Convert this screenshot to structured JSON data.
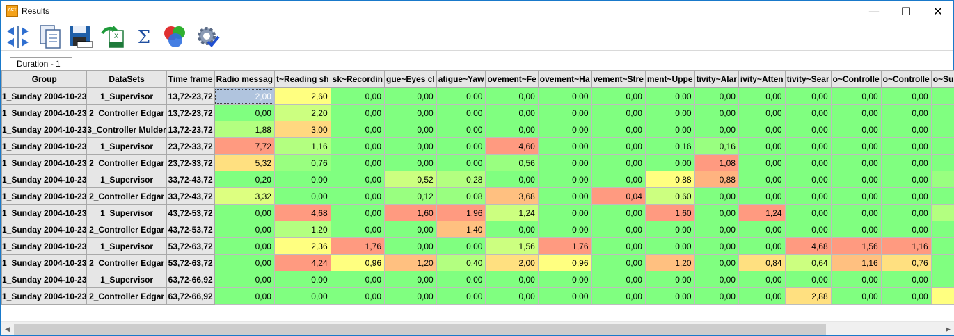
{
  "window": {
    "title": "Results",
    "icon_label": "ACT",
    "controls": {
      "minimize": "—",
      "maximize": "☐",
      "close": "✕"
    }
  },
  "toolbar": {
    "items": [
      {
        "name": "split-arrows-icon"
      },
      {
        "name": "copy-icon"
      },
      {
        "name": "save-icon"
      },
      {
        "name": "export-excel-icon"
      },
      {
        "name": "sum-icon",
        "glyph": "Σ"
      },
      {
        "name": "chart-bubbles-icon"
      },
      {
        "name": "settings-check-icon"
      }
    ]
  },
  "tab": {
    "label": "Duration  - 1"
  },
  "grid": {
    "headers": [
      "Group",
      "DataSets",
      "Time frame",
      "Radio messag",
      "t~Reading sh",
      "sk~Recordin",
      "gue~Eyes cl",
      "atigue~Yaw",
      "ovement~Fe",
      "ovement~Ha",
      "vement~Stre",
      "ment~Uppe",
      "tivity~Alar",
      "ivity~Atten",
      "tivity~Sear",
      "o~Controlle",
      "o~Controlle",
      "o~Sup"
    ],
    "rows": [
      [
        "1_Sunday 2004-10-23",
        "1_Supervisor",
        "13,72-23,72",
        "2,00",
        "2,60",
        "0,00",
        "0,00",
        "0,00",
        "0,00",
        "0,00",
        "0,00",
        "0,00",
        "0,00",
        "0,00",
        "0,00",
        "0,00",
        "0,00",
        ""
      ],
      [
        "1_Sunday 2004-10-23",
        "2_Controller Edgar",
        "13,72-23,72",
        "0,00",
        "2,20",
        "0,00",
        "0,00",
        "0,00",
        "0,00",
        "0,00",
        "0,00",
        "0,00",
        "0,00",
        "0,00",
        "0,00",
        "0,00",
        "0,00",
        ""
      ],
      [
        "1_Sunday 2004-10-23",
        "3_Controller Mulder",
        "13,72-23,72",
        "1,88",
        "3,00",
        "0,00",
        "0,00",
        "0,00",
        "0,00",
        "0,00",
        "0,00",
        "0,00",
        "0,00",
        "0,00",
        "0,00",
        "0,00",
        "0,00",
        ""
      ],
      [
        "1_Sunday 2004-10-23",
        "1_Supervisor",
        "23,72-33,72",
        "7,72",
        "1,16",
        "0,00",
        "0,00",
        "0,00",
        "4,60",
        "0,00",
        "0,00",
        "0,16",
        "0,16",
        "0,00",
        "0,00",
        "0,00",
        "0,00",
        ""
      ],
      [
        "1_Sunday 2004-10-23",
        "2_Controller Edgar",
        "23,72-33,72",
        "5,32",
        "0,76",
        "0,00",
        "0,00",
        "0,00",
        "0,56",
        "0,00",
        "0,00",
        "0,00",
        "1,08",
        "0,00",
        "0,00",
        "0,00",
        "0,00",
        ""
      ],
      [
        "1_Sunday 2004-10-23",
        "1_Supervisor",
        "33,72-43,72",
        "0,20",
        "0,00",
        "0,00",
        "0,52",
        "0,28",
        "0,00",
        "0,00",
        "0,00",
        "0,88",
        "0,88",
        "0,00",
        "0,00",
        "0,00",
        "0,00",
        ""
      ],
      [
        "1_Sunday 2004-10-23",
        "2_Controller Edgar",
        "33,72-43,72",
        "3,32",
        "0,00",
        "0,00",
        "0,12",
        "0,08",
        "3,68",
        "0,00",
        "0,04",
        "0,60",
        "0,00",
        "0,00",
        "0,00",
        "0,00",
        "0,00",
        ""
      ],
      [
        "1_Sunday 2004-10-23",
        "1_Supervisor",
        "43,72-53,72",
        "0,00",
        "4,68",
        "0,00",
        "1,60",
        "1,96",
        "1,24",
        "0,00",
        "0,00",
        "1,60",
        "0,00",
        "1,24",
        "0,00",
        "0,00",
        "0,00",
        ""
      ],
      [
        "1_Sunday 2004-10-23",
        "2_Controller Edgar",
        "43,72-53,72",
        "0,00",
        "1,20",
        "0,00",
        "0,00",
        "1,40",
        "0,00",
        "0,00",
        "0,00",
        "0,00",
        "0,00",
        "0,00",
        "0,00",
        "0,00",
        "0,00",
        ""
      ],
      [
        "1_Sunday 2004-10-23",
        "1_Supervisor",
        "53,72-63,72",
        "0,00",
        "2,36",
        "1,76",
        "0,00",
        "0,00",
        "1,56",
        "1,76",
        "0,00",
        "0,00",
        "0,00",
        "0,00",
        "4,68",
        "1,56",
        "1,16",
        ""
      ],
      [
        "1_Sunday 2004-10-23",
        "2_Controller Edgar",
        "53,72-63,72",
        "0,00",
        "4,24",
        "0,96",
        "1,20",
        "0,40",
        "2,00",
        "0,96",
        "0,00",
        "1,20",
        "0,00",
        "0,84",
        "0,64",
        "1,16",
        "0,76",
        ""
      ],
      [
        "1_Sunday 2004-10-23",
        "1_Supervisor",
        "63,72-66,92",
        "0,00",
        "0,00",
        "0,00",
        "0,00",
        "0,00",
        "0,00",
        "0,00",
        "0,00",
        "0,00",
        "0,00",
        "0,00",
        "0,00",
        "0,00",
        "0,00",
        ""
      ],
      [
        "1_Sunday 2004-10-23",
        "2_Controller Edgar",
        "63,72-66,92",
        "0,00",
        "0,00",
        "0,00",
        "0,00",
        "0,00",
        "0,00",
        "0,00",
        "0,00",
        "0,00",
        "0,00",
        "0,00",
        "2,88",
        "0,00",
        "0,00",
        ""
      ]
    ],
    "cell_colors": [
      [
        "#b0c4de",
        "#ffff80",
        "#80ff80",
        "#80ff80",
        "#80ff80",
        "#80ff80",
        "#80ff80",
        "#80ff80",
        "#80ff80",
        "#80ff80",
        "#80ff80",
        "#80ff80",
        "#80ff80",
        "#80ff80",
        "#80ff80"
      ],
      [
        "#80ff80",
        "#ccff80",
        "#80ff80",
        "#80ff80",
        "#80ff80",
        "#80ff80",
        "#80ff80",
        "#80ff80",
        "#80ff80",
        "#80ff80",
        "#80ff80",
        "#80ff80",
        "#80ff80",
        "#80ff80",
        "#80ff80"
      ],
      [
        "#b3ff80",
        "#ffd880",
        "#80ff80",
        "#80ff80",
        "#80ff80",
        "#80ff80",
        "#80ff80",
        "#80ff80",
        "#80ff80",
        "#80ff80",
        "#80ff80",
        "#80ff80",
        "#80ff80",
        "#80ff80",
        "#80ff80"
      ],
      [
        "#ff9a80",
        "#b3ff80",
        "#80ff80",
        "#80ff80",
        "#80ff80",
        "#ff9a80",
        "#80ff80",
        "#80ff80",
        "#80ff80",
        "#99ff80",
        "#80ff80",
        "#80ff80",
        "#80ff80",
        "#80ff80",
        "#80ff80"
      ],
      [
        "#ffe080",
        "#99ff80",
        "#80ff80",
        "#80ff80",
        "#80ff80",
        "#99ff80",
        "#80ff80",
        "#80ff80",
        "#80ff80",
        "#ff9a80",
        "#80ff80",
        "#80ff80",
        "#80ff80",
        "#80ff80",
        "#80ff80"
      ],
      [
        "#80ff80",
        "#80ff80",
        "#80ff80",
        "#ccff80",
        "#b3ff80",
        "#80ff80",
        "#80ff80",
        "#80ff80",
        "#ffff80",
        "#ffb380",
        "#80ff80",
        "#80ff80",
        "#80ff80",
        "#80ff80",
        "#99ff80"
      ],
      [
        "#ddff80",
        "#80ff80",
        "#80ff80",
        "#99ff80",
        "#99ff80",
        "#ffc080",
        "#80ff80",
        "#ff9a80",
        "#ccff80",
        "#80ff80",
        "#80ff80",
        "#80ff80",
        "#80ff80",
        "#80ff80",
        "#80ff80"
      ],
      [
        "#80ff80",
        "#ff9a80",
        "#80ff80",
        "#ff9a80",
        "#ff9a80",
        "#ccff80",
        "#80ff80",
        "#80ff80",
        "#ff9a80",
        "#80ff80",
        "#ff9a80",
        "#80ff80",
        "#80ff80",
        "#80ff80",
        "#b3ff80"
      ],
      [
        "#80ff80",
        "#b3ff80",
        "#80ff80",
        "#80ff80",
        "#ffc080",
        "#80ff80",
        "#80ff80",
        "#80ff80",
        "#80ff80",
        "#80ff80",
        "#80ff80",
        "#80ff80",
        "#80ff80",
        "#80ff80",
        "#80ff80"
      ],
      [
        "#80ff80",
        "#ffff80",
        "#ff9a80",
        "#80ff80",
        "#80ff80",
        "#ccff80",
        "#ff9a80",
        "#80ff80",
        "#80ff80",
        "#80ff80",
        "#80ff80",
        "#ff9a80",
        "#ff9a80",
        "#ff9a80",
        "#80ff80"
      ],
      [
        "#80ff80",
        "#ff9a80",
        "#ffff80",
        "#ffc080",
        "#b3ff80",
        "#ffe080",
        "#ffff80",
        "#80ff80",
        "#ffc080",
        "#80ff80",
        "#ffe080",
        "#ccff80",
        "#ffc080",
        "#ffe080",
        "#80ff80"
      ],
      [
        "#80ff80",
        "#80ff80",
        "#80ff80",
        "#80ff80",
        "#80ff80",
        "#80ff80",
        "#80ff80",
        "#80ff80",
        "#80ff80",
        "#80ff80",
        "#80ff80",
        "#80ff80",
        "#80ff80",
        "#80ff80",
        "#80ff80"
      ],
      [
        "#80ff80",
        "#80ff80",
        "#80ff80",
        "#80ff80",
        "#80ff80",
        "#80ff80",
        "#80ff80",
        "#80ff80",
        "#80ff80",
        "#80ff80",
        "#80ff80",
        "#ffe080",
        "#80ff80",
        "#80ff80",
        "#ffff80"
      ]
    ],
    "selected_cell": {
      "row": 0,
      "col": 3
    }
  },
  "scrollbar": {
    "left_arrow": "◀",
    "right_arrow": "▶"
  }
}
